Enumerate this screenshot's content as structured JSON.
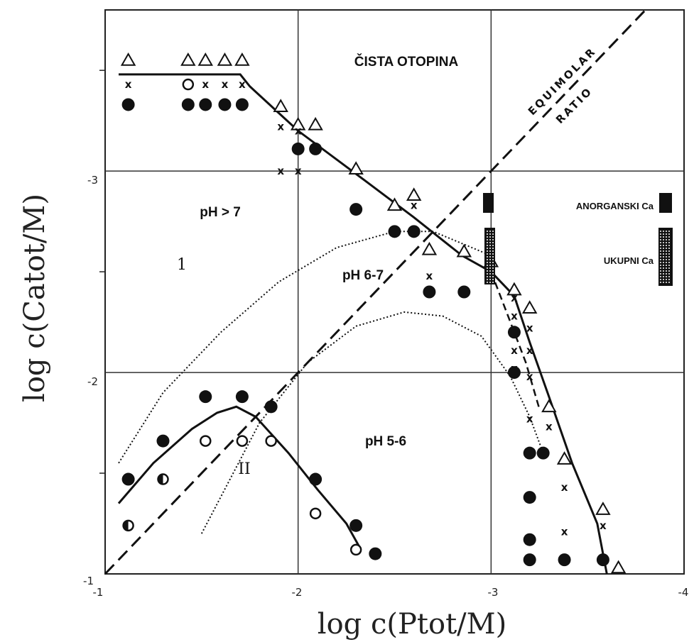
{
  "chart_data": {
    "type": "scatter",
    "xlabel": "log c(Ptot/M)",
    "ylabel": "log c(Catot/M)",
    "xlim": [
      -1,
      -4
    ],
    "ylim": [
      -1,
      -3.8
    ],
    "x_ticks": [
      "-1",
      "-2",
      "-3",
      "-4"
    ],
    "y_ticks": [
      "-1",
      "-2",
      "-3"
    ],
    "grid": true,
    "annotations": {
      "clear_solution": "ČISTA OTOPINA",
      "equimolar_1": "EQUIMOLAR",
      "equimolar_2": "RATIO",
      "ph_high": "pH > 7",
      "ph_mid": "pH 6-7",
      "ph_low": "pH 5-6",
      "region_1": "1",
      "region_2": "II"
    },
    "legend": {
      "inorganic": "ANORGANSKI Ca",
      "total": "UKUPNI Ca"
    },
    "series": [
      {
        "marker": "triangle",
        "points": [
          [
            -1.12,
            -3.55
          ],
          [
            -1.43,
            -3.55
          ],
          [
            -1.52,
            -3.55
          ],
          [
            -1.62,
            -3.55
          ],
          [
            -1.71,
            -3.55
          ],
          [
            -1.91,
            -3.32
          ],
          [
            -2.0,
            -3.23
          ],
          [
            -2.09,
            -3.23
          ],
          [
            -2.3,
            -3.01
          ],
          [
            -2.5,
            -2.83
          ],
          [
            -2.6,
            -2.88
          ],
          [
            -2.68,
            -2.61
          ],
          [
            -2.86,
            -2.6
          ],
          [
            -3.0,
            -2.55
          ],
          [
            -3.12,
            -2.41
          ],
          [
            -3.2,
            -2.32
          ],
          [
            -3.3,
            -1.83
          ],
          [
            -3.38,
            -1.57
          ],
          [
            -3.58,
            -1.32
          ],
          [
            -3.66,
            -1.03
          ]
        ]
      },
      {
        "marker": "cross",
        "points": [
          [
            -1.12,
            -3.43
          ],
          [
            -1.52,
            -3.43
          ],
          [
            -1.62,
            -3.43
          ],
          [
            -1.71,
            -3.43
          ],
          [
            -1.91,
            -3.22
          ],
          [
            -2.0,
            -3.2
          ],
          [
            -1.91,
            -3.0
          ],
          [
            -2.0,
            -3.0
          ],
          [
            -2.6,
            -2.83
          ],
          [
            -2.68,
            -2.48
          ],
          [
            -3.12,
            -2.37
          ],
          [
            -3.12,
            -2.28
          ],
          [
            -3.2,
            -2.22
          ],
          [
            -3.12,
            -2.11
          ],
          [
            -3.2,
            -2.11
          ],
          [
            -3.12,
            -2.02
          ],
          [
            -3.2,
            -1.98
          ],
          [
            -3.2,
            -1.77
          ],
          [
            -3.3,
            -1.73
          ],
          [
            -3.38,
            -1.43
          ],
          [
            -3.38,
            -1.21
          ],
          [
            -3.58,
            -1.24
          ]
        ]
      },
      {
        "marker": "circle-open",
        "points": [
          [
            -1.43,
            -3.43
          ],
          [
            -1.52,
            -1.66
          ],
          [
            -1.71,
            -1.66
          ],
          [
            -1.86,
            -1.66
          ],
          [
            -2.09,
            -1.3
          ],
          [
            -2.3,
            -1.12
          ]
        ]
      },
      {
        "marker": "circle-half",
        "points": [
          [
            -1.12,
            -1.24
          ],
          [
            -1.3,
            -1.47
          ]
        ]
      },
      {
        "marker": "circle-filled",
        "points": [
          [
            -1.12,
            -3.33
          ],
          [
            -1.43,
            -3.33
          ],
          [
            -1.52,
            -3.33
          ],
          [
            -1.62,
            -3.33
          ],
          [
            -1.71,
            -3.33
          ],
          [
            -2.0,
            -3.11
          ],
          [
            -2.09,
            -3.11
          ],
          [
            -2.3,
            -2.81
          ],
          [
            -2.5,
            -2.7
          ],
          [
            -2.6,
            -2.7
          ],
          [
            -2.68,
            -2.4
          ],
          [
            -2.86,
            -2.4
          ],
          [
            -3.12,
            -2.2
          ],
          [
            -3.12,
            -2.0
          ],
          [
            -1.12,
            -1.47
          ],
          [
            -1.3,
            -1.66
          ],
          [
            -1.52,
            -1.88
          ],
          [
            -1.71,
            -1.88
          ],
          [
            -1.86,
            -1.83
          ],
          [
            -2.09,
            -1.47
          ],
          [
            -2.3,
            -1.24
          ],
          [
            -2.4,
            -1.1
          ],
          [
            -3.2,
            -1.6
          ],
          [
            -3.27,
            -1.6
          ],
          [
            -3.2,
            -1.38
          ],
          [
            -3.2,
            -1.17
          ],
          [
            -3.2,
            -1.07
          ],
          [
            -3.38,
            -1.07
          ],
          [
            -3.58,
            -1.07
          ]
        ]
      }
    ],
    "legend_colors": {
      "ink": "#111111",
      "grid": "#222222"
    }
  }
}
